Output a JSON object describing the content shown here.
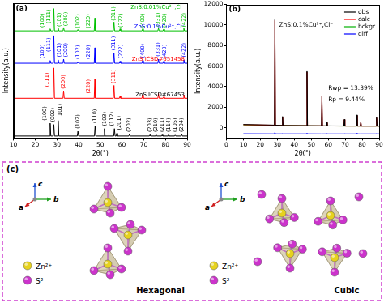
{
  "chart_data": [
    {
      "type": "line",
      "panel_label": "(a)",
      "x_label": "2θ(°)",
      "y_label": "Intensity(a.u.)",
      "xlim": [
        10,
        90
      ],
      "xticks": [
        10,
        20,
        30,
        40,
        50,
        60,
        70,
        80,
        90
      ],
      "ylim": [
        0,
        100
      ],
      "tick_labels": "x",
      "grid": false,
      "series": [
        {
          "name": "ZnS ICSD#67453",
          "color": "#000000",
          "x": [
            10,
            26.6,
            26.9,
            27.2,
            28.3,
            28.6,
            28.9,
            30.3,
            30.6,
            30.9,
            39.4,
            39.7,
            40.0,
            47.3,
            47.6,
            47.9,
            51.6,
            51.9,
            52.2,
            56.2,
            56.5,
            56.8,
            57.3,
            57.6,
            57.9,
            63.1,
            63.4,
            63.7,
            72.6,
            72.9,
            73.2,
            75.4,
            75.7,
            76.0,
            78.2,
            78.5,
            78.8,
            81.2,
            81.5,
            81.8,
            84.2,
            84.5,
            84.8,
            87.2,
            87.5,
            87.8,
            90
          ],
          "values": [
            1.5,
            1.5,
            11,
            1.5,
            1.5,
            10,
            1.5,
            1.5,
            13,
            1.5,
            1.5,
            5,
            1.5,
            1.5,
            9,
            1.5,
            1.5,
            7,
            1.5,
            1.5,
            7,
            1.5,
            1.5,
            3.5,
            1.5,
            1.5,
            2.6,
            1.5,
            1.5,
            2.4,
            1.5,
            1.5,
            2.6,
            1.5,
            1.5,
            2.3,
            1.5,
            1.5,
            2.6,
            1.5,
            1.5,
            2.2,
            1.5,
            1.5,
            2.8,
            1.5,
            1.5
          ],
          "peak_labels": [
            {
              "x": 24.5,
              "y": 13,
              "text": "(100)"
            },
            {
              "x": 28,
              "y": 12,
              "text": "(002)"
            },
            {
              "x": 31.5,
              "y": 15,
              "text": "(101)"
            },
            {
              "x": 39.7,
              "y": 7,
              "text": "(102)"
            },
            {
              "x": 47.6,
              "y": 11,
              "text": "(110)"
            },
            {
              "x": 51.9,
              "y": 9,
              "text": "(103)"
            },
            {
              "x": 55.3,
              "y": 9,
              "text": "(112)"
            },
            {
              "x": 58.6,
              "y": 6,
              "text": "(201)"
            },
            {
              "x": 63.4,
              "y": 4.5,
              "text": "(202)"
            },
            {
              "x": 72.9,
              "y": 4.5,
              "text": "(203)"
            },
            {
              "x": 75.7,
              "y": 4.5,
              "text": "(210)"
            },
            {
              "x": 78.5,
              "y": 4.5,
              "text": "(211)"
            },
            {
              "x": 81.5,
              "y": 4.5,
              "text": "(114)"
            },
            {
              "x": 84.5,
              "y": 4.5,
              "text": "(105)"
            },
            {
              "x": 87.5,
              "y": 4.5,
              "text": "(204)"
            }
          ]
        },
        {
          "name": "ZnS ICSD#651458",
          "color": "#ff0000",
          "x": [
            10,
            28.3,
            28.6,
            28.9,
            32.8,
            33.1,
            33.4,
            47.2,
            47.5,
            47.8,
            56.0,
            56.3,
            56.6,
            58.8,
            59.1,
            59.4,
            69.2,
            69.5,
            69.8,
            76.5,
            76.8,
            77.1,
            78.9,
            79.2,
            79.5,
            88.2,
            88.5,
            88.8,
            90
          ],
          "values": [
            29.5,
            29.5,
            52,
            29.5,
            29.5,
            35,
            29.5,
            29.5,
            44,
            29.5,
            29.5,
            39,
            29.5,
            29.5,
            31,
            29.5,
            29.5,
            32,
            29.5,
            29.5,
            33,
            29.5,
            29.5,
            30.5,
            29.5,
            29.5,
            32,
            29.5,
            29.5
          ],
          "peak_labels": [
            {
              "x": 25.6,
              "y": 38,
              "text": "(111)"
            },
            {
              "x": 33.1,
              "y": 36.5,
              "text": "(200)"
            },
            {
              "x": 44.5,
              "y": 33,
              "text": "(220)"
            },
            {
              "x": 56.3,
              "y": 40.5,
              "text": "(311)"
            }
          ]
        },
        {
          "name": "ZnS:0.1%Cu²⁺,Cl⁻",
          "color": "#0000ff",
          "x": [
            10,
            26.6,
            26.9,
            27.2,
            28.3,
            28.6,
            28.9,
            30.3,
            30.6,
            30.9,
            32.8,
            33.1,
            33.4,
            39.4,
            39.7,
            40.0,
            47.2,
            47.5,
            47.8,
            56.0,
            56.3,
            56.6,
            58.8,
            59.1,
            59.4,
            69.2,
            69.5,
            69.8,
            76.5,
            76.8,
            77.1,
            78.9,
            79.2,
            79.5,
            88.2,
            88.5,
            88.8,
            90
          ],
          "values": [
            55.5,
            55.5,
            57.5,
            55.5,
            55.5,
            76,
            55.5,
            55.5,
            58,
            55.5,
            55.5,
            58.5,
            55.5,
            55.5,
            56.5,
            55.5,
            55.5,
            67,
            55.5,
            55.5,
            63,
            55.5,
            55.5,
            57,
            55.5,
            55.5,
            57.5,
            55.5,
            55.5,
            58.5,
            55.5,
            55.5,
            57,
            55.5,
            55.5,
            58,
            55.5,
            55.5
          ],
          "peak_labels": [
            {
              "x": 23.2,
              "y": 59,
              "text": "(100)"
            },
            {
              "x": 26.2,
              "y": 64,
              "text": "(111)"
            },
            {
              "x": 31.2,
              "y": 60,
              "text": "(101)"
            },
            {
              "x": 34.2,
              "y": 60,
              "text": "(200)"
            },
            {
              "x": 39.7,
              "y": 58.5,
              "text": "(102)"
            },
            {
              "x": 44.5,
              "y": 58.5,
              "text": "(220)"
            },
            {
              "x": 56.3,
              "y": 65,
              "text": "(311)"
            },
            {
              "x": 59.4,
              "y": 59,
              "text": "(222)"
            },
            {
              "x": 69.5,
              "y": 59.5,
              "text": "(400)"
            },
            {
              "x": 76.8,
              "y": 60.5,
              "text": "(331)"
            },
            {
              "x": 79.6,
              "y": 59,
              "text": "(420)"
            },
            {
              "x": 88.5,
              "y": 60,
              "text": "(422)"
            }
          ]
        },
        {
          "name": "ZnS:0.01%Cu²⁺,Cl⁻",
          "color": "#00c000",
          "x": [
            10,
            26.6,
            26.9,
            27.2,
            28.3,
            28.6,
            28.9,
            30.3,
            30.6,
            30.9,
            32.8,
            33.1,
            33.4,
            39.4,
            39.7,
            40.0,
            47.2,
            47.5,
            47.8,
            56.0,
            56.3,
            56.6,
            58.8,
            59.1,
            59.4,
            69.2,
            69.5,
            69.8,
            76.5,
            76.8,
            77.1,
            78.9,
            79.2,
            79.5,
            88.2,
            88.5,
            88.8,
            90
          ],
          "values": [
            79.5,
            79.5,
            81,
            79.5,
            79.5,
            96,
            79.5,
            79.5,
            81.5,
            79.5,
            79.5,
            82,
            79.5,
            79.5,
            80.5,
            79.5,
            79.5,
            89,
            79.5,
            79.5,
            86,
            79.5,
            79.5,
            81,
            79.5,
            79.5,
            81,
            79.5,
            79.5,
            81.5,
            79.5,
            79.5,
            80.8,
            79.5,
            79.5,
            81.3,
            79.5,
            79.5
          ],
          "peak_labels": [
            {
              "x": 23.2,
              "y": 82,
              "text": "(100)"
            },
            {
              "x": 26.2,
              "y": 85,
              "text": "(111)"
            },
            {
              "x": 31.2,
              "y": 82.5,
              "text": "(101)"
            },
            {
              "x": 34.2,
              "y": 83,
              "text": "(200)"
            },
            {
              "x": 39.7,
              "y": 81.5,
              "text": "(102)"
            },
            {
              "x": 44.5,
              "y": 81.5,
              "text": "(220)"
            },
            {
              "x": 56.3,
              "y": 87,
              "text": "(311)"
            },
            {
              "x": 59.4,
              "y": 82,
              "text": "(222)"
            },
            {
              "x": 69.5,
              "y": 82,
              "text": "(400)"
            },
            {
              "x": 76.8,
              "y": 82.5,
              "text": "(331)"
            },
            {
              "x": 79.6,
              "y": 82,
              "text": "(420)"
            },
            {
              "x": 88.5,
              "y": 82.3,
              "text": "(422)"
            }
          ]
        }
      ]
    },
    {
      "type": "line",
      "panel_label": "(b)",
      "x_label": "2θ(°)",
      "y_label": "Intensity(a.u.)",
      "xlim": [
        0,
        90
      ],
      "xticks": [
        0,
        10,
        20,
        30,
        40,
        50,
        60,
        70,
        80,
        90
      ],
      "ylim": [
        -1000,
        12000
      ],
      "yticks": [
        0,
        2000,
        4000,
        6000,
        8000,
        10000,
        12000
      ],
      "grid": false,
      "legend": "upper right",
      "annotations": [
        {
          "x": 31,
          "y": 10000,
          "text": "ZnS:0.1%Cu²⁺,Cl⁻"
        },
        {
          "x": 60,
          "y": 3800,
          "text": "Rwp = 13.39%"
        },
        {
          "x": 60,
          "y": 2700,
          "text": "Rp = 9.44%"
        }
      ],
      "series": [
        {
          "name": "obs",
          "color": "#000000",
          "x": [
            10,
            28.3,
            28.6,
            28.9,
            32.8,
            33.1,
            33.4,
            47.2,
            47.5,
            47.8,
            56.0,
            56.3,
            56.6,
            58.8,
            59.1,
            59.4,
            69.2,
            69.5,
            69.8,
            76.5,
            76.8,
            77.1,
            78.9,
            79.2,
            79.5,
            88.2,
            88.5,
            88.8,
            90
          ],
          "values": [
            320,
            260,
            10600,
            250,
            230,
            1100,
            220,
            210,
            5500,
            200,
            195,
            3100,
            190,
            185,
            520,
            180,
            175,
            820,
            170,
            170,
            1250,
            170,
            165,
            600,
            165,
            165,
            1000,
            160,
            165
          ]
        },
        {
          "name": "calc",
          "color": "#ff0000",
          "x": [
            10,
            28.3,
            28.6,
            28.9,
            32.8,
            33.1,
            33.4,
            47.2,
            47.5,
            47.8,
            56.0,
            56.3,
            56.6,
            58.8,
            59.1,
            59.4,
            69.2,
            69.5,
            69.8,
            76.5,
            76.8,
            77.1,
            78.9,
            79.2,
            79.5,
            88.2,
            88.5,
            88.8,
            90
          ],
          "values": [
            300,
            250,
            10450,
            240,
            220,
            1060,
            210,
            200,
            5420,
            190,
            190,
            3050,
            185,
            180,
            490,
            175,
            170,
            790,
            165,
            165,
            1190,
            165,
            160,
            575,
            160,
            160,
            960,
            155,
            160
          ]
        },
        {
          "name": "bckgr",
          "color": "#00b000",
          "x": [
            10,
            30,
            50,
            70,
            90
          ],
          "values": [
            280,
            230,
            190,
            165,
            160
          ]
        },
        {
          "name": "diff",
          "color": "#0000ff",
          "x": [
            10,
            28.3,
            28.6,
            28.9,
            32.8,
            33.1,
            33.4,
            47.2,
            47.5,
            47.8,
            56.0,
            56.3,
            56.6,
            58.8,
            59.1,
            59.4,
            69.2,
            69.5,
            69.8,
            76.5,
            76.8,
            77.1,
            78.9,
            79.2,
            79.5,
            88.2,
            88.5,
            88.8,
            90
          ],
          "values": [
            -580,
            -590,
            -450,
            -590,
            -590,
            -560,
            -590,
            -590,
            -520,
            -590,
            -595,
            -550,
            -595,
            -595,
            -570,
            -595,
            -595,
            -570,
            -595,
            -595,
            -540,
            -595,
            -595,
            -575,
            -595,
            -595,
            -560,
            -595,
            -595
          ]
        }
      ]
    }
  ],
  "diagram": {
    "panel_label": "(c)",
    "atoms": [
      {
        "label": "Zn²⁺",
        "color": "#e6d21e"
      },
      {
        "label": "S²⁻",
        "color": "#cc33cc"
      }
    ],
    "axes": [
      "a",
      "b",
      "c"
    ],
    "panels": [
      {
        "title": "Hexagonal"
      },
      {
        "title": "Cubic"
      }
    ]
  }
}
